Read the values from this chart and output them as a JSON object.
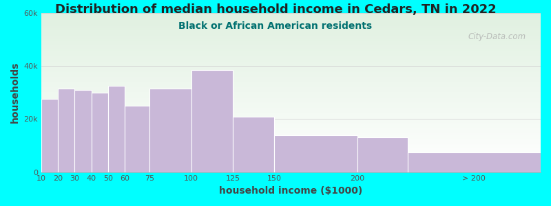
{
  "title": "Distribution of median household income in Cedars, TN in 2022",
  "subtitle": "Black or African American residents",
  "xlabel": "household income ($1000)",
  "ylabel": "households",
  "background_outer": "#00FFFF",
  "background_inner_top": "#e0f0e0",
  "background_inner_bottom": "#ffffff",
  "bar_color": "#c9b8d8",
  "bar_edge_color": "#ffffff",
  "bin_edges": [
    10,
    20,
    30,
    40,
    50,
    60,
    75,
    100,
    125,
    150,
    200,
    230,
    310
  ],
  "xtick_positions": [
    10,
    20,
    30,
    40,
    50,
    60,
    75,
    100,
    125,
    150,
    200,
    270
  ],
  "xtick_labels": [
    "10",
    "20",
    "30",
    "40",
    "50",
    "60",
    "75",
    "100",
    "125",
    "150",
    "200",
    "> 200"
  ],
  "values": [
    27500,
    31500,
    31000,
    30000,
    32500,
    25000,
    31500,
    38500,
    21000,
    14000,
    13000,
    7500
  ],
  "ylim": [
    0,
    60000
  ],
  "yticks": [
    0,
    20000,
    40000,
    60000
  ],
  "ytick_labels": [
    "0",
    "20k",
    "40k",
    "60k"
  ],
  "title_fontsize": 13,
  "subtitle_fontsize": 10,
  "axis_label_fontsize": 10,
  "tick_fontsize": 8,
  "watermark": "City-Data.com"
}
